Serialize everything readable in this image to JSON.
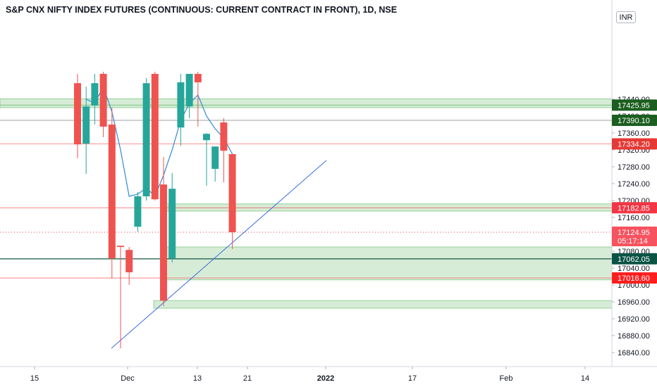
{
  "title": "S&P CNX NIFTY INDEX FUTURES (CONTINUOUS: CURRENT CONTRACT IN FRONT), 1D, NSE",
  "currency": "INR",
  "chart_data": {
    "type": "candlestick",
    "symbol": "S&P CNX NIFTY INDEX FUTURES (CONTINUOUS: CURRENT CONTRACT IN FRONT)",
    "interval": "1D",
    "exchange": "NSE",
    "y_axis": {
      "ticks": [
        "16840.00",
        "16880.00",
        "16920.00",
        "16960.00",
        "17000.00",
        "17040.00",
        "17080.00",
        "17120.00",
        "17160.00",
        "17200.00",
        "17240.00",
        "17280.00",
        "17320.00",
        "17360.00",
        "17400.00",
        "17440.00"
      ],
      "range": [
        16800,
        17450
      ],
      "position": "right"
    },
    "x_axis": {
      "labels": [
        "15",
        "Dec",
        "13",
        "21",
        "2022",
        "17",
        "Feb",
        "14"
      ]
    },
    "candles": [
      {
        "o": 17478,
        "h": 17500,
        "l": 17300,
        "c": 17333
      },
      {
        "o": 17335,
        "h": 17470,
        "l": 17263,
        "c": 17423
      },
      {
        "o": 17425,
        "h": 17500,
        "l": 17380,
        "c": 17478
      },
      {
        "o": 17500,
        "h": 17505,
        "l": 17350,
        "c": 17375
      },
      {
        "o": 17380,
        "h": 17420,
        "l": 17015,
        "c": 17063
      },
      {
        "o": 17093,
        "h": 17093,
        "l": 16850,
        "c": 17090
      },
      {
        "o": 17083,
        "h": 17090,
        "l": 17000,
        "c": 17030
      },
      {
        "o": 17138,
        "h": 17220,
        "l": 17126,
        "c": 17210
      },
      {
        "o": 17210,
        "h": 17490,
        "l": 17200,
        "c": 17478
      },
      {
        "o": 17500,
        "h": 17505,
        "l": 17200,
        "c": 17203
      },
      {
        "o": 17238,
        "h": 17303,
        "l": 16950,
        "c": 16963
      },
      {
        "o": 17063,
        "h": 17265,
        "l": 17053,
        "c": 17228
      },
      {
        "o": 17373,
        "h": 17500,
        "l": 17330,
        "c": 17480
      },
      {
        "o": 17423,
        "h": 17500,
        "l": 17395,
        "c": 17500
      },
      {
        "o": 17500,
        "h": 17505,
        "l": 17375,
        "c": 17480
      },
      {
        "o": 17343,
        "h": 17360,
        "l": 17235,
        "c": 17358
      },
      {
        "o": 17275,
        "h": 17328,
        "l": 17245,
        "c": 17328
      },
      {
        "o": 17385,
        "h": 17395,
        "l": 17243,
        "c": 17318
      },
      {
        "o": 17310,
        "h": 17310,
        "l": 17085,
        "c": 17125
      }
    ],
    "moving_average": [
      17440,
      17430,
      17470,
      17410,
      17320,
      17210,
      17215,
      17230,
      17210,
      17260,
      17320,
      17390,
      17430,
      17450,
      17400,
      17370,
      17348,
      17310
    ],
    "zones": [
      {
        "low": 17420,
        "high": 17441
      },
      {
        "low": 17175,
        "high": 17192
      },
      {
        "low": 17012,
        "high": 17090
      },
      {
        "low": 16945,
        "high": 16963
      }
    ],
    "horizontal_lines": [
      17425.95,
      17390.1,
      17334.2,
      17182.85,
      17062.05,
      17016.6
    ],
    "trendline": {
      "from": {
        "price": 16850
      },
      "to": {
        "price": 17295
      }
    },
    "price_labels": [
      {
        "text": "17425.95",
        "color": "#1b5e20"
      },
      {
        "text": "17390.10",
        "color": "#1b5e20"
      },
      {
        "text": "17334.20",
        "color": "#e53935"
      },
      {
        "text": "17182.85",
        "color": "#f23645"
      },
      {
        "text": "17124.95",
        "sub": "05:17:14",
        "color": "#f7525f"
      },
      {
        "text": "17062.05",
        "color": "#0b5345"
      },
      {
        "text": "17016.60",
        "color": "#ff1f1f"
      }
    ],
    "colors": {
      "up": "#26a69a",
      "down": "#ef5350",
      "ma": "#2e8bd6",
      "trend": "#3d6fd8",
      "zone": "#c8e6c9"
    }
  }
}
